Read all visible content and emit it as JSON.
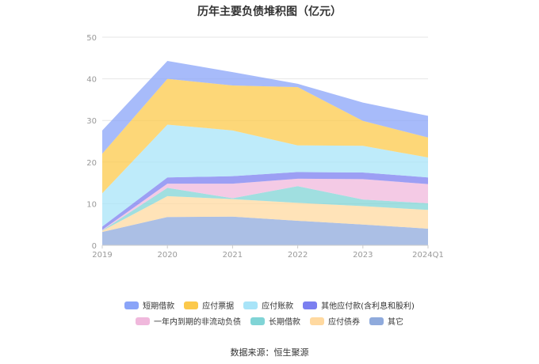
{
  "chart_data": {
    "type": "area",
    "stacked": true,
    "title": "历年主要负债堆积图（亿元）",
    "x": [
      "2019",
      "2020",
      "2021",
      "2022",
      "2023",
      "2024Q1"
    ],
    "ylim": [
      0,
      50
    ],
    "yticks": [
      0,
      10,
      20,
      30,
      40,
      50
    ],
    "grid": true,
    "legend_position": "bottom",
    "series": [
      {
        "name": "其它",
        "color": "#8faadc",
        "values": [
          3.2,
          6.8,
          6.9,
          5.9,
          5.0,
          4.0
        ]
      },
      {
        "name": "应付债券",
        "color": "#ffd9a0",
        "values": [
          0.3,
          5.0,
          4.2,
          4.3,
          4.4,
          4.5
        ]
      },
      {
        "name": "长期借款",
        "color": "#80d4d6",
        "values": [
          0.1,
          2.0,
          0.2,
          4.0,
          1.6,
          1.6
        ]
      },
      {
        "name": "一年内到期的非流动负债",
        "color": "#f0b8dc",
        "values": [
          0.1,
          1.0,
          3.5,
          1.8,
          4.9,
          4.6
        ]
      },
      {
        "name": "其他应付款(含利息和股利)",
        "color": "#7b7ff0",
        "values": [
          0.8,
          1.5,
          1.8,
          1.6,
          1.6,
          1.6
        ]
      },
      {
        "name": "应付账款",
        "color": "#a8e4f8",
        "values": [
          8.0,
          12.7,
          11.0,
          6.4,
          6.4,
          4.8
        ]
      },
      {
        "name": "应付票据",
        "color": "#fcc94b",
        "values": [
          9.5,
          11.0,
          10.8,
          14.0,
          6.0,
          4.8
        ]
      },
      {
        "name": "短期借款",
        "color": "#8aa4f8",
        "values": [
          5.6,
          4.3,
          3.2,
          0.8,
          4.4,
          5.2
        ]
      }
    ]
  },
  "legend": {
    "row1": [
      {
        "label": "短期借款",
        "color": "#8aa4f8"
      },
      {
        "label": "应付票据",
        "color": "#fcc94b"
      },
      {
        "label": "应付账款",
        "color": "#a8e4f8"
      },
      {
        "label": "其他应付款(含利息和股利)",
        "color": "#7b7ff0"
      }
    ],
    "row2": [
      {
        "label": "一年内到期的非流动负债",
        "color": "#f0b8dc"
      },
      {
        "label": "长期借款",
        "color": "#80d4d6"
      },
      {
        "label": "应付债券",
        "color": "#ffd9a0"
      },
      {
        "label": "其它",
        "color": "#8faadc"
      }
    ]
  },
  "source": "数据来源：恒生聚源"
}
